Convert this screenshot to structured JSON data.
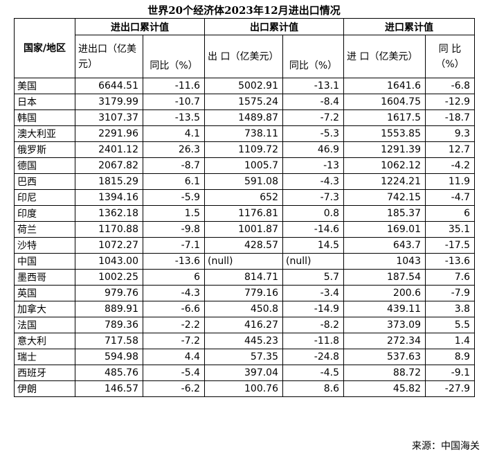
{
  "title": "世界20个经济体2023年12月进出口情况",
  "headers": {
    "country": "国家/地区",
    "group_total": "进出口累计值",
    "group_export": "出口累计值",
    "group_import": "进口累计值",
    "total_value": "进出口（亿美元）",
    "total_yoy": "同比（%）",
    "export_value": "出 口（亿美元）",
    "export_yoy": "同比（%）",
    "import_value": "进 口（亿美元）",
    "import_yoy": "同 比（%）"
  },
  "rows": [
    {
      "country": "美国",
      "total": "6644.51",
      "total_yoy": "-11.6",
      "export": "5002.91",
      "export_yoy": "-13.1",
      "import": "1641.6",
      "import_yoy": "-6.8"
    },
    {
      "country": "日本",
      "total": "3179.99",
      "total_yoy": "-10.7",
      "export": "1575.24",
      "export_yoy": "-8.4",
      "import": "1604.75",
      "import_yoy": "-12.9"
    },
    {
      "country": "韩国",
      "total": "3107.37",
      "total_yoy": "-13.5",
      "export": "1489.87",
      "export_yoy": "-7.2",
      "import": "1617.5",
      "import_yoy": "-18.7"
    },
    {
      "country": "澳大利亚",
      "total": "2291.96",
      "total_yoy": "4.1",
      "export": "738.11",
      "export_yoy": "-5.3",
      "import": "1553.85",
      "import_yoy": "9.3"
    },
    {
      "country": "俄罗斯",
      "total": "2401.12",
      "total_yoy": "26.3",
      "export": "1109.72",
      "export_yoy": "46.9",
      "import": "1291.39",
      "import_yoy": "12.7"
    },
    {
      "country": "德国",
      "total": "2067.82",
      "total_yoy": "-8.7",
      "export": "1005.7",
      "export_yoy": "-13",
      "import": "1062.12",
      "import_yoy": "-4.2"
    },
    {
      "country": "巴西",
      "total": "1815.29",
      "total_yoy": "6.1",
      "export": "591.08",
      "export_yoy": "-4.3",
      "import": "1224.21",
      "import_yoy": "11.9"
    },
    {
      "country": "印尼",
      "total": "1394.16",
      "total_yoy": "-5.9",
      "export": "652",
      "export_yoy": "-7.3",
      "import": "742.15",
      "import_yoy": "-4.7"
    },
    {
      "country": "印度",
      "total": "1362.18",
      "total_yoy": "1.5",
      "export": "1176.81",
      "export_yoy": "0.8",
      "import": "185.37",
      "import_yoy": "6"
    },
    {
      "country": "荷兰",
      "total": "1170.88",
      "total_yoy": "-9.8",
      "export": "1001.87",
      "export_yoy": "-14.6",
      "import": "169.01",
      "import_yoy": "35.1"
    },
    {
      "country": "沙特",
      "total": "1072.27",
      "total_yoy": "-7.1",
      "export": "428.57",
      "export_yoy": "14.5",
      "import": "643.7",
      "import_yoy": "-17.5"
    },
    {
      "country": "中国",
      "total": "1043.00",
      "total_yoy": "-13.6",
      "export": "(null)",
      "export_yoy": "(null)",
      "import": "1043",
      "import_yoy": "-13.6"
    },
    {
      "country": "墨西哥",
      "total": "1002.25",
      "total_yoy": "6",
      "export": "814.71",
      "export_yoy": "5.7",
      "import": "187.54",
      "import_yoy": "7.6"
    },
    {
      "country": "英国",
      "total": "979.76",
      "total_yoy": "-4.3",
      "export": "779.16",
      "export_yoy": "-3.4",
      "import": "200.6",
      "import_yoy": "-7.9"
    },
    {
      "country": "加拿大",
      "total": "889.91",
      "total_yoy": "-6.6",
      "export": "450.8",
      "export_yoy": "-14.9",
      "import": "439.11",
      "import_yoy": "3.8"
    },
    {
      "country": "法国",
      "total": "789.36",
      "total_yoy": "-2.2",
      "export": "416.27",
      "export_yoy": "-8.2",
      "import": "373.09",
      "import_yoy": "5.5"
    },
    {
      "country": "意大利",
      "total": "717.58",
      "total_yoy": "-7.2",
      "export": "445.23",
      "export_yoy": "-11.8",
      "import": "272.34",
      "import_yoy": "1.4"
    },
    {
      "country": "瑞士",
      "total": "594.98",
      "total_yoy": "4.4",
      "export": "57.35",
      "export_yoy": "-24.8",
      "import": "537.63",
      "import_yoy": "8.9"
    },
    {
      "country": "西班牙",
      "total": "485.76",
      "total_yoy": "-5.4",
      "export": "397.04",
      "export_yoy": "-4.5",
      "import": "88.72",
      "import_yoy": "-9.1"
    },
    {
      "country": "伊朗",
      "total": "146.57",
      "total_yoy": "-6.2",
      "export": "100.76",
      "export_yoy": "8.6",
      "import": "45.82",
      "import_yoy": "-27.9"
    }
  ],
  "source": "来源：中国海关"
}
